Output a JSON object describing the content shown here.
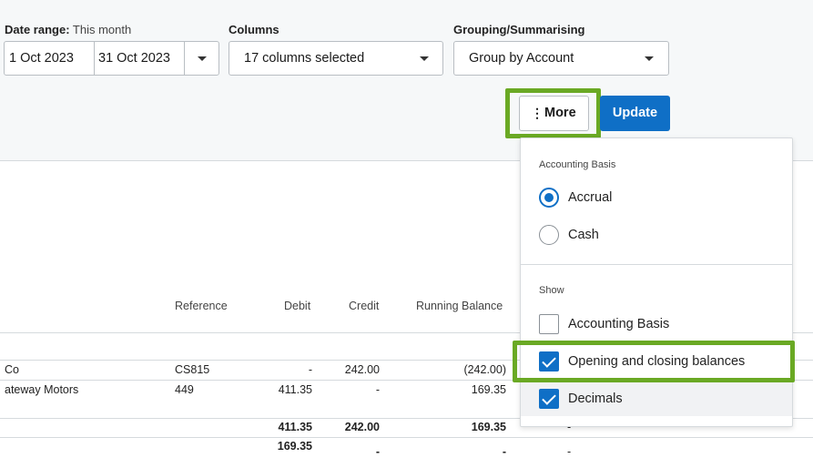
{
  "filters": {
    "date_range_label": "Date range:",
    "date_range_value": "This month",
    "start_date": "1 Oct 2023",
    "end_date": "31 Oct 2023",
    "columns_label": "Columns",
    "columns_value": "17 columns selected",
    "grouping_label": "Grouping/Summarising",
    "grouping_value": "Group by Account"
  },
  "actions": {
    "more_label": "More",
    "update_label": "Update"
  },
  "table": {
    "headers": {
      "reference": "Reference",
      "debit": "Debit",
      "credit": "Credit",
      "running_balance": "Running Balance"
    },
    "rows": [
      {
        "name": "Co",
        "reference": "CS815",
        "debit": "-",
        "credit": "242.00",
        "balance": "(242.00)",
        "extra": ""
      },
      {
        "name": "ateway Motors",
        "reference": "449",
        "debit": "411.35",
        "credit": "-",
        "balance": "169.35",
        "extra": ""
      }
    ],
    "total": {
      "debit": "411.35",
      "credit": "242.00",
      "balance": "169.35",
      "extra": "-"
    },
    "closing": {
      "debit": "169.35",
      "credit": "-",
      "balance": "-",
      "extra": "-"
    }
  },
  "more_menu": {
    "accounting_basis_heading": "Accounting Basis",
    "basis_options": [
      {
        "label": "Accrual",
        "selected": true
      },
      {
        "label": "Cash",
        "selected": false
      }
    ],
    "show_heading": "Show",
    "show_options": [
      {
        "label": "Accounting Basis",
        "checked": false
      },
      {
        "label": "Opening and closing balances",
        "checked": true
      },
      {
        "label": "Decimals",
        "checked": true
      }
    ]
  },
  "colors": {
    "accent": "#0f6fc6",
    "highlight": "#6aa924",
    "toolbar_bg": "#f6f8f9"
  }
}
